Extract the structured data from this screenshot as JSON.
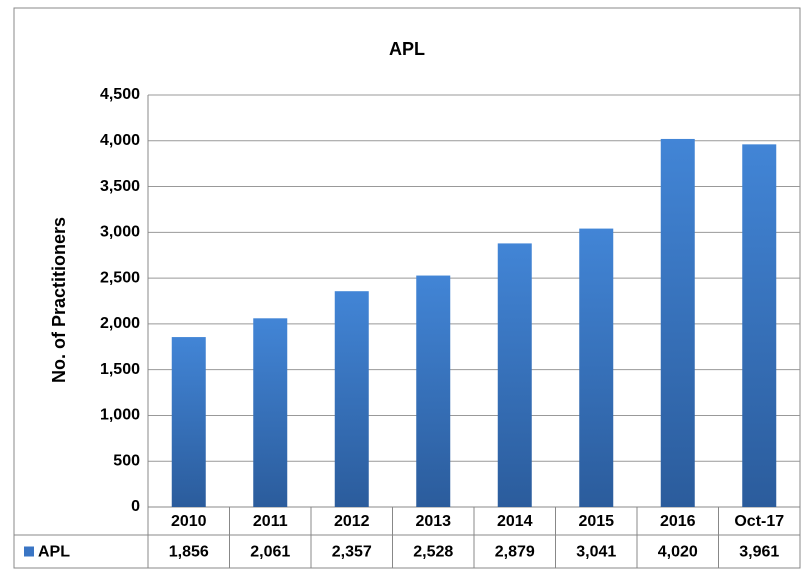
{
  "chart_data": {
    "type": "bar",
    "title": "APL",
    "y_label": "No. of Practitioners",
    "categories": [
      "2010",
      "2011",
      "2012",
      "2013",
      "2014",
      "2015",
      "2016",
      "Oct-17"
    ],
    "series": [
      {
        "name": "APL",
        "color": "#3a75c4",
        "values": [
          1856,
          2061,
          2357,
          2528,
          2879,
          3041,
          4020,
          3961
        ],
        "value_labels": [
          "1,856",
          "2,061",
          "2,357",
          "2,528",
          "2,879",
          "3,041",
          "4,020",
          "3,961"
        ]
      }
    ],
    "ylim": [
      0,
      4500
    ],
    "yticks": [
      0,
      500,
      {
        "value": 1000,
        "label": "1,000"
      },
      {
        "value": 1500,
        "label": "1,500"
      },
      {
        "value": 2000,
        "label": "2,000"
      },
      {
        "value": 2500,
        "label": "2,500"
      },
      {
        "value": 3000,
        "label": "3,000"
      },
      {
        "value": 3500,
        "label": "3,500"
      },
      {
        "value": 4000,
        "label": "4,000"
      },
      {
        "value": 4500,
        "label": "4,500"
      }
    ],
    "grid": true
  }
}
